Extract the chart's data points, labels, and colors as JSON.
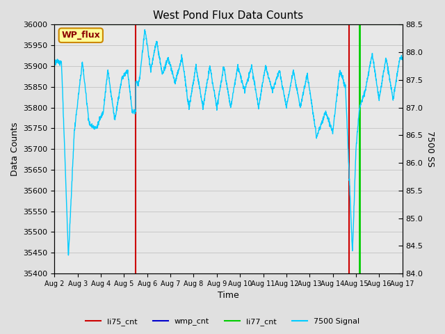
{
  "title": "West Pond Flux Data Counts",
  "ylabel_left": "Data Counts",
  "ylabel_right": "7500 SS",
  "xlabel": "Time",
  "ylim_left": [
    35400,
    36000
  ],
  "ylim_right": [
    84.0,
    88.5
  ],
  "fig_bg_color": "#e0e0e0",
  "plot_bg_color": "#e8e8e8",
  "wp_flux_label": "WP_flux",
  "wp_flux_box_color": "#ffff99",
  "wp_flux_border_color": "#cc8800",
  "legend_labels": [
    "li75_cnt",
    "wmp_cnt",
    "li77_cnt",
    "7500 Signal"
  ],
  "legend_colors": [
    "#cc0000",
    "#0000cc",
    "#00cc00",
    "#00ccff"
  ],
  "li75_vlines": [
    3.5,
    12.7
  ],
  "li77_vline": 13.15,
  "li77_line_color": "#00cc00",
  "li75_line_color": "#cc0000",
  "wmp_line_color": "#0000cc",
  "cyan_line_color": "#00ccff",
  "hline_y": 36000,
  "hline_color": "#00cc00",
  "grid_color": "#c8c8c8",
  "tick_label_fontsize": 8,
  "axis_label_fontsize": 9,
  "title_fontsize": 11,
  "xlim": [
    0,
    15
  ],
  "xtick_labels": [
    "Aug 2",
    "Aug 3",
    "Aug 4",
    "Aug 5",
    "Aug 6",
    "Aug 7",
    "Aug 8",
    "Aug 9",
    "Aug 10",
    "Aug 11",
    "Aug 12",
    "Aug 13",
    "Aug 14",
    "Aug 15",
    "Aug 16",
    "Aug 17"
  ]
}
